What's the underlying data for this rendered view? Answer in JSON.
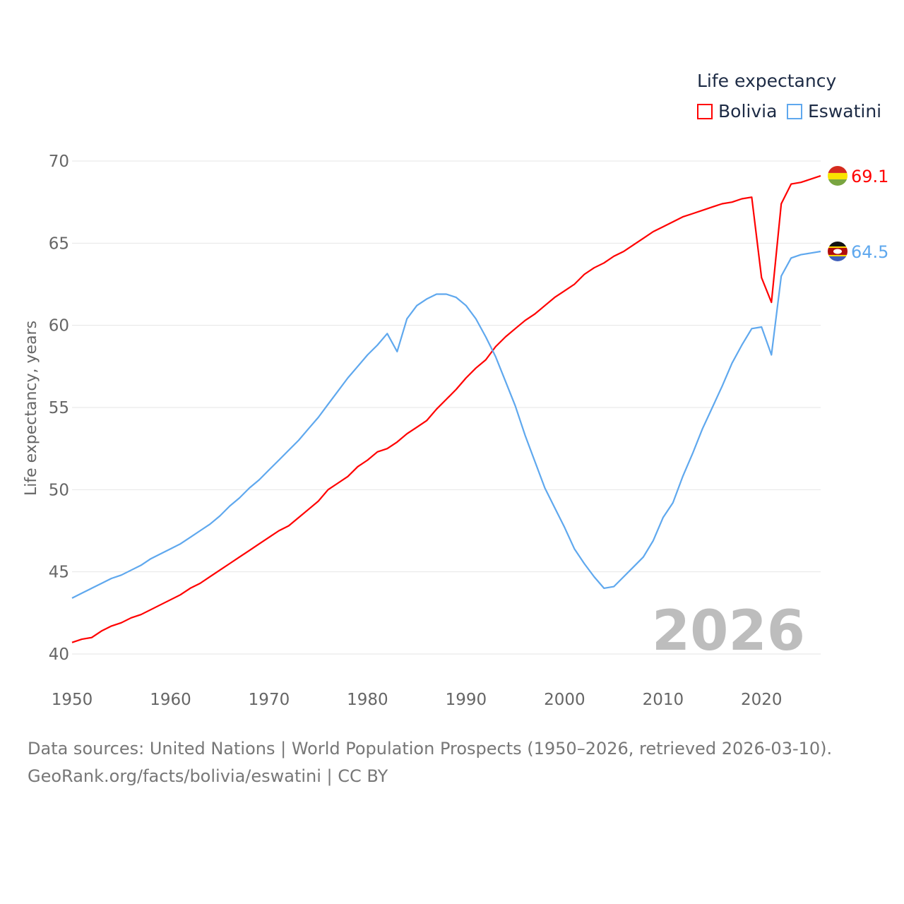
{
  "chart_data": {
    "type": "line",
    "title": "",
    "legend_title": "Life expectancy",
    "ylabel": "Life expectancy, years",
    "xlabel": "",
    "xlim": [
      1950,
      2026
    ],
    "ylim": [
      40,
      70
    ],
    "x_ticks": [
      "1950",
      "1960",
      "1970",
      "1980",
      "1990",
      "2000",
      "2010",
      "2020"
    ],
    "y_ticks": [
      "40",
      "45",
      "50",
      "55",
      "60",
      "65",
      "70"
    ],
    "grid": true,
    "legend_position": "top-right",
    "year_label": "2026",
    "x_start": 1950,
    "series": [
      {
        "name": "Bolivia",
        "color": "#ff0000",
        "end_label": "69.1",
        "values": [
          40.7,
          40.9,
          41.0,
          41.4,
          41.7,
          41.9,
          42.2,
          42.4,
          42.7,
          43.0,
          43.3,
          43.6,
          44.0,
          44.3,
          44.7,
          45.1,
          45.5,
          45.9,
          46.3,
          46.7,
          47.1,
          47.5,
          47.8,
          48.3,
          48.8,
          49.3,
          50.0,
          50.4,
          50.8,
          51.4,
          51.8,
          52.3,
          52.5,
          52.9,
          53.4,
          53.8,
          54.2,
          54.9,
          55.5,
          56.1,
          56.8,
          57.4,
          57.9,
          58.7,
          59.3,
          59.8,
          60.3,
          60.7,
          61.2,
          61.7,
          62.1,
          62.5,
          63.1,
          63.5,
          63.8,
          64.2,
          64.5,
          64.9,
          65.3,
          65.7,
          66.0,
          66.3,
          66.6,
          66.8,
          67.0,
          67.2,
          67.4,
          67.5,
          67.7,
          67.8,
          62.9,
          61.4,
          67.4,
          68.6,
          68.7,
          68.9,
          69.1
        ]
      },
      {
        "name": "Eswatini",
        "color": "#5fa8ee",
        "end_label": "64.5",
        "values": [
          43.4,
          43.7,
          44.0,
          44.3,
          44.6,
          44.8,
          45.1,
          45.4,
          45.8,
          46.1,
          46.4,
          46.7,
          47.1,
          47.5,
          47.9,
          48.4,
          49.0,
          49.5,
          50.1,
          50.6,
          51.2,
          51.8,
          52.4,
          53.0,
          53.7,
          54.4,
          55.2,
          56.0,
          56.8,
          57.5,
          58.2,
          58.8,
          59.5,
          58.4,
          60.4,
          61.2,
          61.6,
          61.9,
          61.9,
          61.7,
          61.2,
          60.4,
          59.3,
          58.1,
          56.6,
          55.1,
          53.3,
          51.7,
          50.1,
          48.9,
          47.7,
          46.4,
          45.5,
          44.7,
          44.0,
          44.1,
          44.7,
          45.3,
          45.9,
          46.9,
          48.3,
          49.2,
          50.8,
          52.2,
          53.7,
          55.0,
          56.3,
          57.7,
          58.8,
          59.8,
          59.9,
          58.2,
          63.0,
          64.1,
          64.3,
          64.4,
          64.5
        ]
      }
    ]
  },
  "footer": {
    "line1": "Data sources: United Nations | World Population Prospects (1950–2026, retrieved 2026-03-10).",
    "line2": "GeoRank.org/facts/bolivia/eswatini | CC BY"
  }
}
